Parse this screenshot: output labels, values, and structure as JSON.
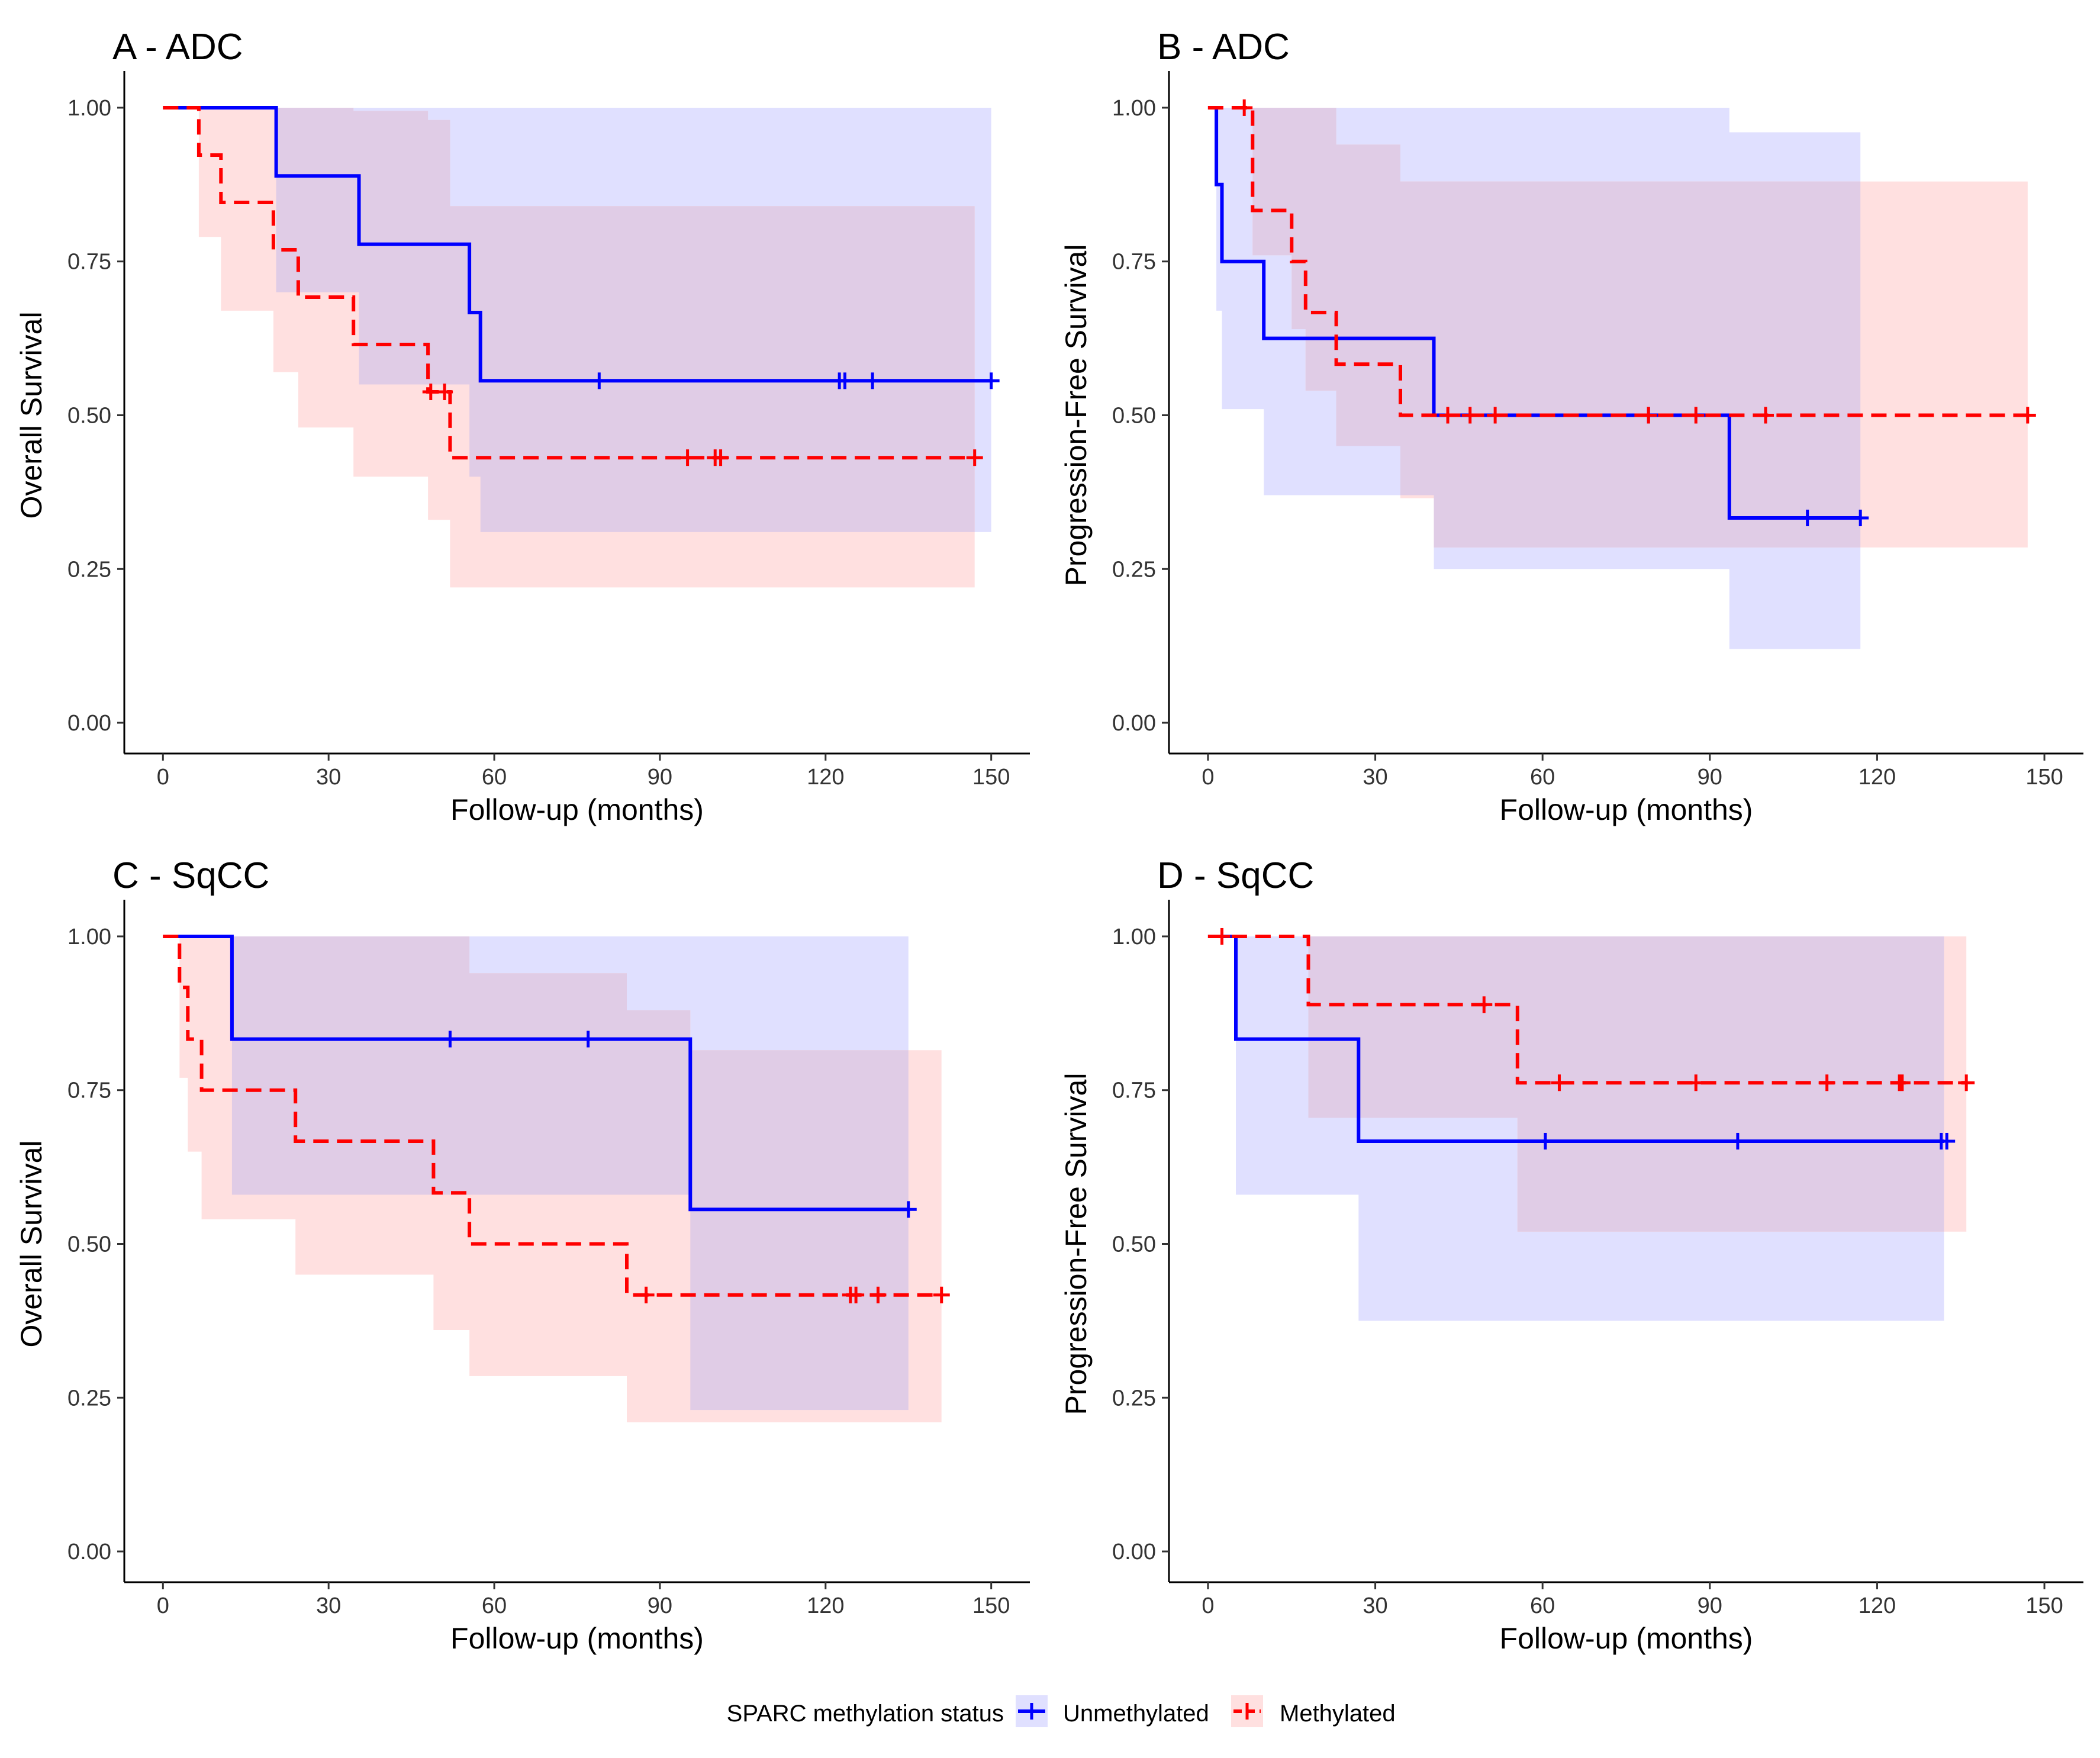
{
  "figure": {
    "legend_title": "SPARC methylation status",
    "legend_labels": [
      "Unmethylated",
      "Methylated"
    ]
  },
  "colors": {
    "unmethylated_line": "#0000FF",
    "unmethylated_band": "#E0E0FF",
    "methylated_line": "#FF0000",
    "methylated_band": "#FFE0E0",
    "overlap_band": "#E0CCE6"
  },
  "chart_data": [
    {
      "type": "line",
      "subtype": "kaplan-meier",
      "title": "A - ADC",
      "xlabel": "Follow-up (months)",
      "ylabel": "Overall Survival",
      "xlim": [
        -7,
        157
      ],
      "ylim": [
        -0.05,
        1.05
      ],
      "xticks": [
        0,
        30,
        60,
        90,
        120,
        150
      ],
      "yticks": [
        0,
        0.25,
        0.5,
        0.75,
        1.0
      ],
      "ytick_labels": [
        "0.00",
        "0.25",
        "0.50",
        "0.75",
        "1.00"
      ],
      "series": [
        {
          "name": "Unmethylated",
          "style": "solid",
          "steps": [
            [
              0,
              1.0
            ],
            [
              20.5,
              0.889
            ],
            [
              35.5,
              0.778
            ],
            [
              55.5,
              0.667
            ],
            [
              57.5,
              0.556
            ],
            [
              150,
              0.556
            ]
          ],
          "censor": [
            79,
            122.5,
            123.5,
            128.5,
            150
          ],
          "ci_lower": [
            [
              0,
              1.0
            ],
            [
              20.5,
              0.7
            ],
            [
              35.5,
              0.55
            ],
            [
              55.5,
              0.4
            ],
            [
              57.5,
              0.31
            ],
            [
              150,
              0.31
            ]
          ],
          "ci_upper": [
            [
              0,
              1.0
            ],
            [
              20.5,
              1.0
            ],
            [
              57.5,
              1.0
            ],
            [
              150,
              1.0
            ]
          ]
        },
        {
          "name": "Methylated",
          "style": "dashed",
          "steps": [
            [
              0,
              1.0
            ],
            [
              6.5,
              0.923
            ],
            [
              10.5,
              0.846
            ],
            [
              20,
              0.769
            ],
            [
              24.5,
              0.692
            ],
            [
              34.5,
              0.615
            ],
            [
              48,
              0.538
            ],
            [
              52,
              0.431
            ],
            [
              147,
              0.431
            ]
          ],
          "censor": [
            48.5,
            51,
            95,
            100,
            101,
            147
          ],
          "ci_lower": [
            [
              0,
              1.0
            ],
            [
              6.5,
              0.79
            ],
            [
              10.5,
              0.67
            ],
            [
              20,
              0.57
            ],
            [
              24.5,
              0.48
            ],
            [
              34.5,
              0.4
            ],
            [
              48,
              0.33
            ],
            [
              52,
              0.22
            ],
            [
              147,
              0.22
            ]
          ],
          "ci_upper": [
            [
              0,
              1.0
            ],
            [
              34.5,
              0.995
            ],
            [
              48,
              0.98
            ],
            [
              52,
              0.84
            ],
            [
              147,
              0.84
            ]
          ]
        }
      ]
    },
    {
      "type": "line",
      "subtype": "kaplan-meier",
      "title": "B - ADC",
      "xlabel": "Follow-up (months)",
      "ylabel": "Progression-Free Survival",
      "xlim": [
        -7,
        157
      ],
      "ylim": [
        -0.05,
        1.05
      ],
      "xticks": [
        0,
        30,
        60,
        90,
        120,
        150
      ],
      "yticks": [
        0,
        0.25,
        0.5,
        0.75,
        1.0
      ],
      "ytick_labels": [
        "0.00",
        "0.25",
        "0.50",
        "0.75",
        "1.00"
      ],
      "series": [
        {
          "name": "Unmethylated",
          "style": "solid",
          "steps": [
            [
              0,
              1.0
            ],
            [
              1.5,
              0.875
            ],
            [
              2.5,
              0.75
            ],
            [
              10,
              0.625
            ],
            [
              40.5,
              0.5
            ],
            [
              93.5,
              0.333
            ],
            [
              117,
              0.333
            ]
          ],
          "censor": [
            79,
            107.5,
            117
          ],
          "ci_lower": [
            [
              0,
              1.0
            ],
            [
              1.5,
              0.67
            ],
            [
              2.5,
              0.51
            ],
            [
              10,
              0.37
            ],
            [
              40.5,
              0.25
            ],
            [
              93.5,
              0.12
            ],
            [
              117,
              0.12
            ]
          ],
          "ci_upper": [
            [
              0,
              1.0
            ],
            [
              93.5,
              0.96
            ],
            [
              117,
              0.96
            ]
          ]
        },
        {
          "name": "Methylated",
          "style": "dashed",
          "steps": [
            [
              0,
              1.0
            ],
            [
              8,
              0.833
            ],
            [
              15,
              0.75
            ],
            [
              17.5,
              0.667
            ],
            [
              23,
              0.583
            ],
            [
              34.5,
              0.5
            ],
            [
              147,
              0.5
            ]
          ],
          "censor": [
            6.5,
            43,
            47,
            51.5,
            79,
            87.5,
            100,
            147
          ],
          "ci_lower": [
            [
              0,
              1.0
            ],
            [
              8,
              0.76
            ],
            [
              15,
              0.64
            ],
            [
              17.5,
              0.54
            ],
            [
              23,
              0.45
            ],
            [
              34.5,
              0.365
            ],
            [
              40.5,
              0.285
            ],
            [
              147,
              0.285
            ]
          ],
          "ci_upper": [
            [
              0,
              1.0
            ],
            [
              17.5,
              1.0
            ],
            [
              23,
              0.94
            ],
            [
              34.5,
              0.88
            ],
            [
              147,
              0.88
            ]
          ]
        }
      ]
    },
    {
      "type": "line",
      "subtype": "kaplan-meier",
      "title": "C - SqCC",
      "xlabel": "Follow-up (months)",
      "ylabel": "Overall Survival",
      "xlim": [
        -7,
        157
      ],
      "ylim": [
        -0.05,
        1.05
      ],
      "xticks": [
        0,
        30,
        60,
        90,
        120,
        150
      ],
      "yticks": [
        0,
        0.25,
        0.5,
        0.75,
        1.0
      ],
      "ytick_labels": [
        "0.00",
        "0.25",
        "0.50",
        "0.75",
        "1.00"
      ],
      "series": [
        {
          "name": "Unmethylated",
          "style": "solid",
          "steps": [
            [
              0,
              1.0
            ],
            [
              12.5,
              0.833
            ],
            [
              95.5,
              0.556
            ],
            [
              135,
              0.556
            ]
          ],
          "censor": [
            52,
            77,
            135
          ],
          "ci_lower": [
            [
              0,
              1.0
            ],
            [
              12.5,
              0.58
            ],
            [
              95.5,
              0.23
            ],
            [
              135,
              0.23
            ]
          ],
          "ci_upper": [
            [
              0,
              1.0
            ],
            [
              135,
              1.0
            ]
          ]
        },
        {
          "name": "Methylated",
          "style": "dashed",
          "steps": [
            [
              0,
              1.0
            ],
            [
              3,
              0.917
            ],
            [
              4.5,
              0.833
            ],
            [
              7,
              0.75
            ],
            [
              24,
              0.667
            ],
            [
              49,
              0.583
            ],
            [
              55.5,
              0.5
            ],
            [
              84,
              0.417
            ],
            [
              141,
              0.417
            ]
          ],
          "censor": [
            87.5,
            124.5,
            125.5,
            129.5,
            141
          ],
          "ci_lower": [
            [
              0,
              1.0
            ],
            [
              3,
              0.77
            ],
            [
              4.5,
              0.65
            ],
            [
              7,
              0.54
            ],
            [
              24,
              0.45
            ],
            [
              49,
              0.36
            ],
            [
              55.5,
              0.285
            ],
            [
              84,
              0.21
            ],
            [
              141,
              0.21
            ]
          ],
          "ci_upper": [
            [
              0,
              1.0
            ],
            [
              49,
              1.0
            ],
            [
              55.5,
              0.94
            ],
            [
              84,
              0.88
            ],
            [
              95.5,
              0.815
            ],
            [
              141,
              0.815
            ]
          ]
        }
      ]
    },
    {
      "type": "line",
      "subtype": "kaplan-meier",
      "title": "D - SqCC",
      "xlabel": "Follow-up (months)",
      "ylabel": "Progression-Free Survival",
      "xlim": [
        -7,
        157
      ],
      "ylim": [
        -0.05,
        1.05
      ],
      "xticks": [
        0,
        30,
        60,
        90,
        120,
        150
      ],
      "yticks": [
        0,
        0.25,
        0.5,
        0.75,
        1.0
      ],
      "ytick_labels": [
        "0.00",
        "0.25",
        "0.50",
        "0.75",
        "1.00"
      ],
      "series": [
        {
          "name": "Unmethylated",
          "style": "solid",
          "steps": [
            [
              0,
              1.0
            ],
            [
              5,
              0.833
            ],
            [
              27,
              0.667
            ],
            [
              132,
              0.667
            ]
          ],
          "censor": [
            60.5,
            95,
            131.5,
            132.5
          ],
          "ci_lower": [
            [
              0,
              1.0
            ],
            [
              5,
              0.58
            ],
            [
              27,
              0.375
            ],
            [
              132,
              0.375
            ]
          ],
          "ci_upper": [
            [
              0,
              1.0
            ],
            [
              132,
              1.0
            ]
          ]
        },
        {
          "name": "Methylated",
          "style": "dashed",
          "steps": [
            [
              0,
              1.0
            ],
            [
              18,
              0.889
            ],
            [
              55.5,
              0.762
            ],
            [
              136,
              0.762
            ]
          ],
          "censor": [
            2.5,
            49.5,
            63,
            87.5,
            111,
            124,
            124.5,
            136
          ],
          "ci_lower": [
            [
              0,
              1.0
            ],
            [
              18,
              0.705
            ],
            [
              55.5,
              0.52
            ],
            [
              136,
              0.52
            ]
          ],
          "ci_upper": [
            [
              0,
              1.0
            ],
            [
              136,
              1.0
            ]
          ]
        }
      ]
    }
  ]
}
